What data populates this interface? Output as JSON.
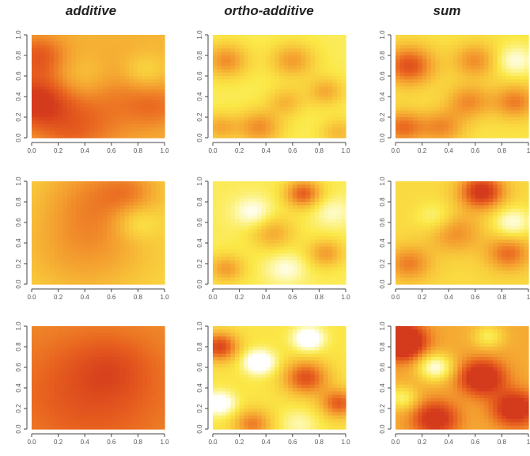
{
  "column_titles": [
    "additive",
    "ortho-additive",
    "sum"
  ],
  "palette": [
    "#d43a1c",
    "#e8621f",
    "#f39a2e",
    "#f8c53a",
    "#fbe847",
    "#fdf7a4",
    "#ffffff"
  ],
  "chart_data": [
    {
      "type": "heatmap",
      "row": 1,
      "column": "additive",
      "title": "",
      "x_ticks": [
        "0.0",
        "0.2",
        "0.4",
        "0.6",
        "0.8",
        "1.0"
      ],
      "y_ticks": [
        "0.0",
        "0.2",
        "0.4",
        "0.6",
        "0.8",
        "1.0"
      ],
      "xlim": [
        0,
        1
      ],
      "ylim": [
        0,
        1
      ],
      "peaks": [
        {
          "x": 0.02,
          "y": 0.35,
          "w": 0.18,
          "a": 0.45
        },
        {
          "x": 0.05,
          "y": 0.8,
          "w": 0.15,
          "a": 0.3
        },
        {
          "x": 0.6,
          "y": 0.38,
          "w": 0.3,
          "a": 0.2
        },
        {
          "x": 0.3,
          "y": 0.05,
          "w": 0.2,
          "a": 0.2
        },
        {
          "x": 0.95,
          "y": 0.3,
          "w": 0.15,
          "a": 0.15
        },
        {
          "x": 0.85,
          "y": 0.65,
          "w": 0.12,
          "a": -0.2
        },
        {
          "x": 0.4,
          "y": 0.6,
          "w": 0.15,
          "a": -0.15
        }
      ],
      "baseline": 0.25
    },
    {
      "type": "heatmap",
      "row": 1,
      "column": "ortho-additive",
      "title": "",
      "x_ticks": [
        "0.0",
        "0.2",
        "0.4",
        "0.6",
        "0.8",
        "1.0"
      ],
      "y_ticks": [
        "0.0",
        "0.2",
        "0.4",
        "0.6",
        "0.8",
        "1.0"
      ],
      "xlim": [
        0,
        1
      ],
      "ylim": [
        0,
        1
      ],
      "peaks": [
        {
          "x": 0.1,
          "y": 0.75,
          "w": 0.12,
          "a": 0.4
        },
        {
          "x": 0.6,
          "y": 0.75,
          "w": 0.12,
          "a": 0.35
        },
        {
          "x": 0.35,
          "y": 0.1,
          "w": 0.12,
          "a": 0.4
        },
        {
          "x": 0.05,
          "y": 0.1,
          "w": 0.1,
          "a": 0.3
        },
        {
          "x": 0.85,
          "y": 0.45,
          "w": 0.1,
          "a": 0.3
        },
        {
          "x": 0.55,
          "y": 0.35,
          "w": 0.1,
          "a": 0.25
        },
        {
          "x": 0.95,
          "y": 0.05,
          "w": 0.1,
          "a": 0.25
        }
      ],
      "baseline": 0.0
    },
    {
      "type": "heatmap",
      "row": 1,
      "column": "sum",
      "title": "",
      "x_ticks": [
        "0.0",
        "0.2",
        "0.4",
        "0.6",
        "0.8",
        "1"
      ],
      "y_ticks": [
        "0.0",
        "0.2",
        "0.4",
        "0.6",
        "0.8",
        "1.0"
      ],
      "xlim": [
        0,
        1
      ],
      "ylim": [
        0,
        1
      ],
      "peaks": [
        {
          "x": 0.1,
          "y": 0.7,
          "w": 0.14,
          "a": 0.55
        },
        {
          "x": 0.05,
          "y": 0.1,
          "w": 0.12,
          "a": 0.45
        },
        {
          "x": 0.6,
          "y": 0.75,
          "w": 0.12,
          "a": 0.35
        },
        {
          "x": 0.55,
          "y": 0.35,
          "w": 0.12,
          "a": 0.35
        },
        {
          "x": 0.35,
          "y": 0.1,
          "w": 0.12,
          "a": 0.35
        },
        {
          "x": 0.9,
          "y": 0.35,
          "w": 0.12,
          "a": 0.4
        },
        {
          "x": 0.9,
          "y": 0.75,
          "w": 0.1,
          "a": -0.3
        }
      ],
      "baseline": 0.05
    },
    {
      "type": "heatmap",
      "row": 2,
      "column": "additive",
      "title": "",
      "x_ticks": [
        "0.0",
        "0.2",
        "0.4",
        "0.6",
        "0.8",
        "1.0"
      ],
      "y_ticks": [
        "0.0",
        "0.2",
        "0.4",
        "0.6",
        "0.8",
        "1.0"
      ],
      "xlim": [
        0,
        1
      ],
      "ylim": [
        0,
        1
      ],
      "peaks": [
        {
          "x": 0.5,
          "y": 0.9,
          "w": 0.3,
          "a": 0.25
        },
        {
          "x": 0.4,
          "y": 0.35,
          "w": 0.35,
          "a": 0.25
        },
        {
          "x": 0.75,
          "y": 0.9,
          "w": 0.15,
          "a": 0.15
        },
        {
          "x": 0.8,
          "y": 0.6,
          "w": 0.12,
          "a": -0.2
        }
      ],
      "baseline": 0.1
    },
    {
      "type": "heatmap",
      "row": 2,
      "column": "ortho-additive",
      "title": "",
      "x_ticks": [
        "0.0",
        "0.2",
        "0.4",
        "0.6",
        "0.8",
        "1.0"
      ],
      "y_ticks": [
        "0.0",
        "0.2",
        "0.4",
        "0.6",
        "0.8",
        "1.0"
      ],
      "xlim": [
        0,
        1
      ],
      "ylim": [
        0,
        1
      ],
      "peaks": [
        {
          "x": 0.68,
          "y": 0.88,
          "w": 0.1,
          "a": 0.55
        },
        {
          "x": 0.85,
          "y": 0.3,
          "w": 0.1,
          "a": 0.35
        },
        {
          "x": 0.1,
          "y": 0.15,
          "w": 0.1,
          "a": 0.35
        },
        {
          "x": 0.45,
          "y": 0.5,
          "w": 0.12,
          "a": 0.3
        },
        {
          "x": 0.3,
          "y": 0.7,
          "w": 0.1,
          "a": -0.3
        },
        {
          "x": 0.55,
          "y": 0.15,
          "w": 0.1,
          "a": -0.25
        },
        {
          "x": 0.9,
          "y": 0.7,
          "w": 0.1,
          "a": -0.2
        }
      ],
      "baseline": 0.0
    },
    {
      "type": "heatmap",
      "row": 2,
      "column": "sum",
      "title": "",
      "x_ticks": [
        "0.0",
        "0.2",
        "0.4",
        "0.6",
        "0.8",
        "1"
      ],
      "y_ticks": [
        "0.0",
        "0.2",
        "0.4",
        "0.6",
        "0.8",
        "1.0"
      ],
      "xlim": [
        0,
        1
      ],
      "ylim": [
        0,
        1
      ],
      "peaks": [
        {
          "x": 0.65,
          "y": 0.9,
          "w": 0.12,
          "a": 0.65
        },
        {
          "x": 0.85,
          "y": 0.3,
          "w": 0.12,
          "a": 0.4
        },
        {
          "x": 0.1,
          "y": 0.2,
          "w": 0.12,
          "a": 0.35
        },
        {
          "x": 0.45,
          "y": 0.5,
          "w": 0.14,
          "a": 0.3
        },
        {
          "x": 0.88,
          "y": 0.6,
          "w": 0.1,
          "a": -0.35
        },
        {
          "x": 0.3,
          "y": 0.65,
          "w": 0.1,
          "a": -0.2
        }
      ],
      "baseline": 0.1
    },
    {
      "type": "heatmap",
      "row": 3,
      "column": "additive",
      "title": "",
      "x_ticks": [
        "0.0",
        "0.2",
        "0.4",
        "0.6",
        "0.8",
        "1.0"
      ],
      "y_ticks": [
        "0.0",
        "0.2",
        "0.4",
        "0.6",
        "0.8",
        "1.0"
      ],
      "xlim": [
        0,
        1
      ],
      "ylim": [
        0,
        1
      ],
      "peaks": [
        {
          "x": 0.45,
          "y": 0.35,
          "w": 0.4,
          "a": 0.2
        },
        {
          "x": 0.6,
          "y": 0.6,
          "w": 0.2,
          "a": 0.1
        }
      ],
      "baseline": 0.4
    },
    {
      "type": "heatmap",
      "row": 3,
      "column": "ortho-additive",
      "title": "",
      "x_ticks": [
        "0.0",
        "0.2",
        "0.4",
        "0.6",
        "0.8",
        "1.0"
      ],
      "y_ticks": [
        "0.0",
        "0.2",
        "0.4",
        "0.6",
        "0.8",
        "1.0"
      ],
      "xlim": [
        0,
        1
      ],
      "ylim": [
        0,
        1
      ],
      "peaks": [
        {
          "x": 0.05,
          "y": 0.8,
          "w": 0.1,
          "a": 0.6
        },
        {
          "x": 0.7,
          "y": 0.5,
          "w": 0.12,
          "a": 0.55
        },
        {
          "x": 0.3,
          "y": 0.05,
          "w": 0.1,
          "a": 0.4
        },
        {
          "x": 0.95,
          "y": 0.25,
          "w": 0.1,
          "a": 0.5
        },
        {
          "x": 0.35,
          "y": 0.65,
          "w": 0.08,
          "a": -0.6
        },
        {
          "x": 0.05,
          "y": 0.25,
          "w": 0.08,
          "a": -0.5
        },
        {
          "x": 0.72,
          "y": 0.88,
          "w": 0.08,
          "a": -0.55
        },
        {
          "x": 0.65,
          "y": 0.05,
          "w": 0.1,
          "a": -0.2
        }
      ],
      "baseline": 0.05
    },
    {
      "type": "heatmap",
      "row": 3,
      "column": "sum",
      "title": "",
      "x_ticks": [
        "0.0",
        "0.2",
        "0.4",
        "0.6",
        "0.8",
        "1"
      ],
      "y_ticks": [
        "0.0",
        "0.2",
        "0.4",
        "0.6",
        "0.8",
        "1.0"
      ],
      "xlim": [
        0,
        1
      ],
      "ylim": [
        0,
        1
      ],
      "peaks": [
        {
          "x": 0.05,
          "y": 0.85,
          "w": 0.12,
          "a": 0.8
        },
        {
          "x": 0.65,
          "y": 0.5,
          "w": 0.12,
          "a": 0.6
        },
        {
          "x": 0.3,
          "y": 0.1,
          "w": 0.12,
          "a": 0.5
        },
        {
          "x": 0.9,
          "y": 0.2,
          "w": 0.12,
          "a": 0.55
        },
        {
          "x": 0.3,
          "y": 0.6,
          "w": 0.09,
          "a": -0.55
        },
        {
          "x": 0.05,
          "y": 0.3,
          "w": 0.08,
          "a": -0.35
        },
        {
          "x": 0.7,
          "y": 0.9,
          "w": 0.08,
          "a": -0.3
        }
      ],
      "baseline": 0.3
    }
  ]
}
